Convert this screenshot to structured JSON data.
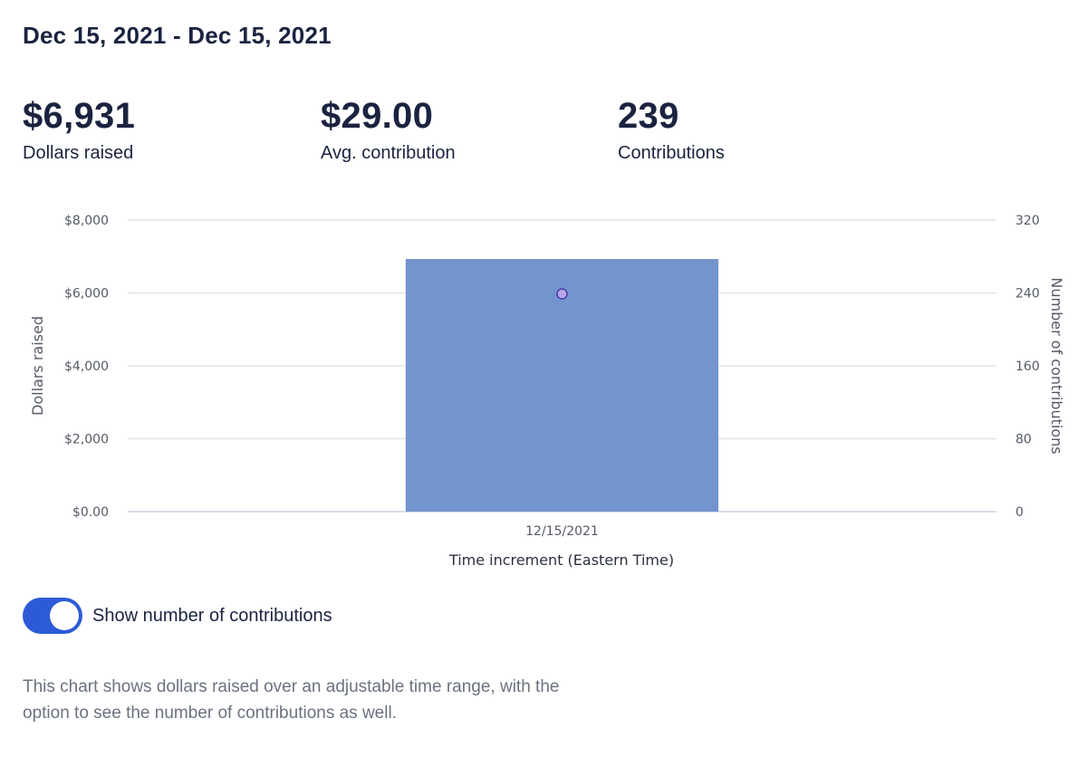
{
  "header": {
    "date_range": "Dec 15, 2021 - Dec 15, 2021"
  },
  "stats": [
    {
      "value": "$6,931",
      "label": "Dollars raised"
    },
    {
      "value": "$29.00",
      "label": "Avg. contribution"
    },
    {
      "value": "239",
      "label": "Contributions"
    }
  ],
  "chart_data": {
    "type": "bar",
    "categories": [
      "12/15/2021"
    ],
    "series": [
      {
        "name": "Dollars raised",
        "values": [
          6931
        ],
        "axis": "left",
        "kind": "bar",
        "color": "#7294cf"
      },
      {
        "name": "Number of contributions",
        "values": [
          239
        ],
        "axis": "right",
        "kind": "point",
        "color": "#b8a7e8"
      }
    ],
    "xlabel": "Time increment (Eastern Time)",
    "ylabel": "Dollars raised",
    "y2label": "Number of contributions",
    "ylim": [
      0,
      8000
    ],
    "y2lim": [
      0,
      320
    ],
    "yticks": [
      "$0.00",
      "$2,000",
      "$4,000",
      "$6,000",
      "$8,000"
    ],
    "y2ticks": [
      "0",
      "80",
      "160",
      "240",
      "320"
    ],
    "grid": true,
    "gridline_color": "#e1e5ec"
  },
  "toggle": {
    "label": "Show number of contributions",
    "checked": true,
    "color": "#2d5bd7"
  },
  "description": "This chart shows dollars raised over an adjustable time range, with the option to see the number of contributions as well."
}
